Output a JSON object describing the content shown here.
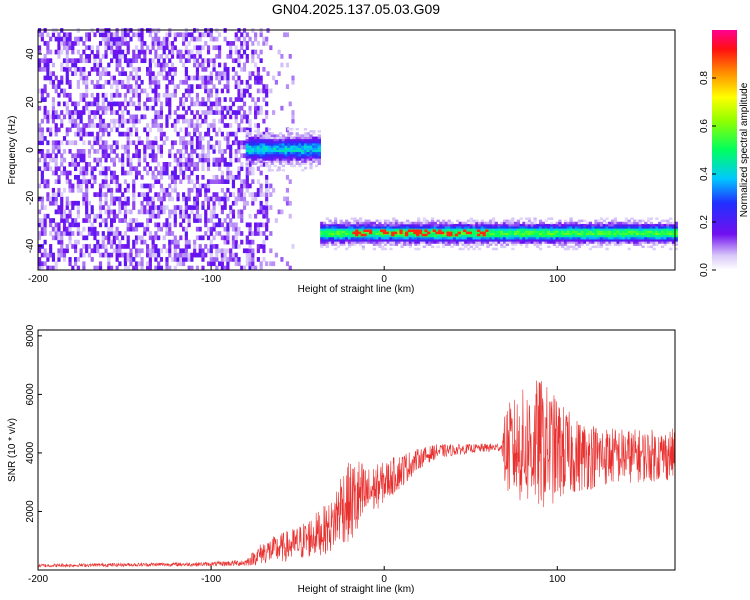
{
  "title": "GN04.2025.137.05.03.G09",
  "chart_data": [
    {
      "type": "heatmap",
      "xlabel": "Height of straight line (km)",
      "ylabel": "Frequency (Hz)",
      "xlim": [
        -200,
        168
      ],
      "ylim": [
        -50,
        50
      ],
      "xticks": [
        -200,
        -100,
        0,
        100
      ],
      "yticks": [
        -40,
        -20,
        0,
        20,
        40
      ],
      "colorbar": {
        "label": "Normalized spectral amplitude",
        "range": [
          0,
          1
        ],
        "ticks": [
          "0.0",
          "0.2",
          "0.4",
          "0.6",
          "0.8"
        ]
      },
      "features": [
        {
          "kind": "noise",
          "x_range": [
            -200,
            -68
          ],
          "freq_range": [
            -50,
            50
          ],
          "level": 0.15
        },
        {
          "kind": "sparse-noise",
          "x_range": [
            -68,
            -52
          ],
          "freq_range": [
            -50,
            50
          ],
          "level": 0.08
        },
        {
          "kind": "line",
          "x_range": [
            -80,
            -37
          ],
          "freq": 0,
          "width_hz": 4,
          "level": 0.4
        },
        {
          "kind": "line",
          "x_range": [
            -37,
            168
          ],
          "freq": -35,
          "width_hz": 3,
          "level": 0.55
        },
        {
          "kind": "peak",
          "x_range": [
            -20,
            60
          ],
          "freq": -35,
          "level": 0.9
        }
      ]
    },
    {
      "type": "line",
      "xlabel": "Height of straight line (km)",
      "ylabel": "SNR (10 * v/v)",
      "xlim": [
        -200,
        168
      ],
      "ylim": [
        0,
        8200
      ],
      "xticks": [
        -200,
        -100,
        0,
        100
      ],
      "yticks": [
        2000,
        4000,
        6000,
        8000
      ],
      "color": "#e8302f",
      "series": [
        {
          "x": [
            -200,
            -150,
            -100,
            -80,
            -70,
            -50,
            -30,
            -25,
            -15,
            -10,
            0,
            10,
            20,
            30,
            50,
            68,
            70,
            80,
            90,
            100,
            110,
            130,
            150,
            168
          ],
          "y": [
            150,
            180,
            200,
            250,
            600,
            900,
            1500,
            2200,
            2400,
            2600,
            3000,
            3400,
            3800,
            4050,
            4150,
            4200,
            4100,
            4200,
            4300,
            4100,
            3900,
            3900,
            3900,
            3950
          ],
          "spread": [
            60,
            60,
            70,
            120,
            400,
            600,
            900,
            1300,
            1500,
            900,
            700,
            600,
            350,
            250,
            150,
            150,
            1500,
            2000,
            2300,
            1800,
            1300,
            1000,
            900,
            900
          ]
        }
      ]
    }
  ]
}
